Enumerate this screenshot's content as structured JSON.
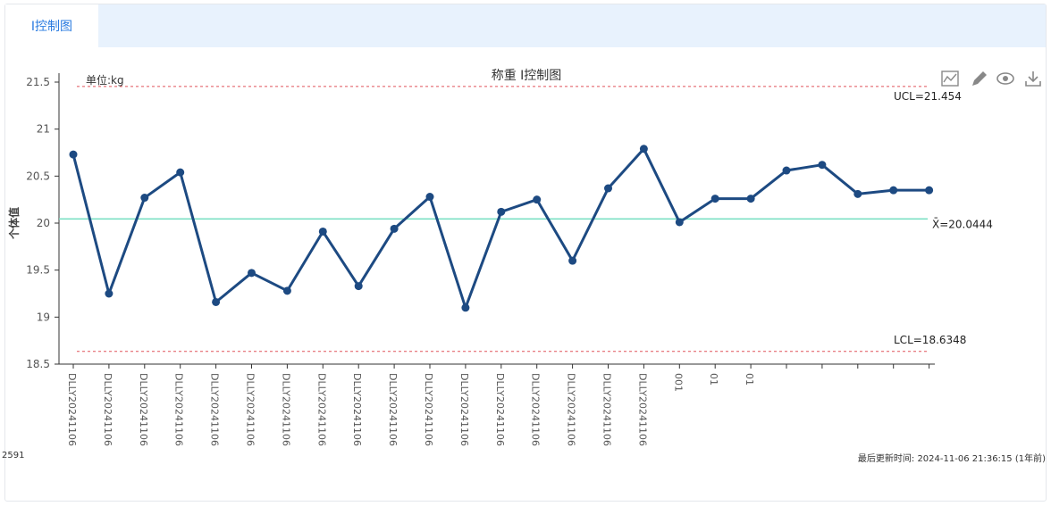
{
  "tabs": [
    {
      "label": "I控制图",
      "active": true
    }
  ],
  "chart_data": {
    "type": "line",
    "title": "称重 I控制图",
    "subtitle": "单位:kg",
    "ylabel": "个体值",
    "ylim": [
      18.5,
      21.5
    ],
    "yticks": [
      "21.5",
      "21",
      "20.5",
      "20",
      "19.5",
      "19",
      "18.5"
    ],
    "ucl": {
      "value": 21.454,
      "label": "UCL=21.454"
    },
    "center": {
      "value": 20.0444,
      "label": "X̄=20.0444"
    },
    "lcl": {
      "value": 18.6348,
      "label": "LCL=18.6348"
    },
    "categories": [
      "DLLY20241106",
      "DLLY20241106",
      "DLLY20241106",
      "DLLY20241106",
      "DLLY20241106",
      "DLLY20241106",
      "DLLY20241106",
      "DLLY20241106",
      "DLLY20241106",
      "DLLY20241106",
      "DLLY20241106",
      "DLLY20241106",
      "DLLY20241106",
      "DLLY20241106",
      "DLLY20241106",
      "DLLY20241106",
      "DLLY20241106",
      "001",
      "01",
      "01",
      "",
      "",
      "",
      "",
      ""
    ],
    "values": [
      20.73,
      19.25,
      20.27,
      20.54,
      19.16,
      19.47,
      19.28,
      19.91,
      19.33,
      19.94,
      20.28,
      19.1,
      20.12,
      20.25,
      19.6,
      20.37,
      20.79,
      20.01,
      20.26,
      20.26,
      20.56,
      20.62,
      20.31,
      20.35,
      20.35
    ],
    "colors": {
      "line": "#1d4a82",
      "center": "#7ee0c4",
      "limit": "#e0525a",
      "axis": "#333333"
    }
  },
  "toolbar": [
    {
      "name": "line-chart-icon"
    },
    {
      "name": "pencil-icon"
    },
    {
      "name": "eye-icon"
    },
    {
      "name": "download-icon"
    }
  ],
  "footer": {
    "left": "2591",
    "right": "最后更新时间: 2024-11-06 21:36:15 (1年前)"
  }
}
